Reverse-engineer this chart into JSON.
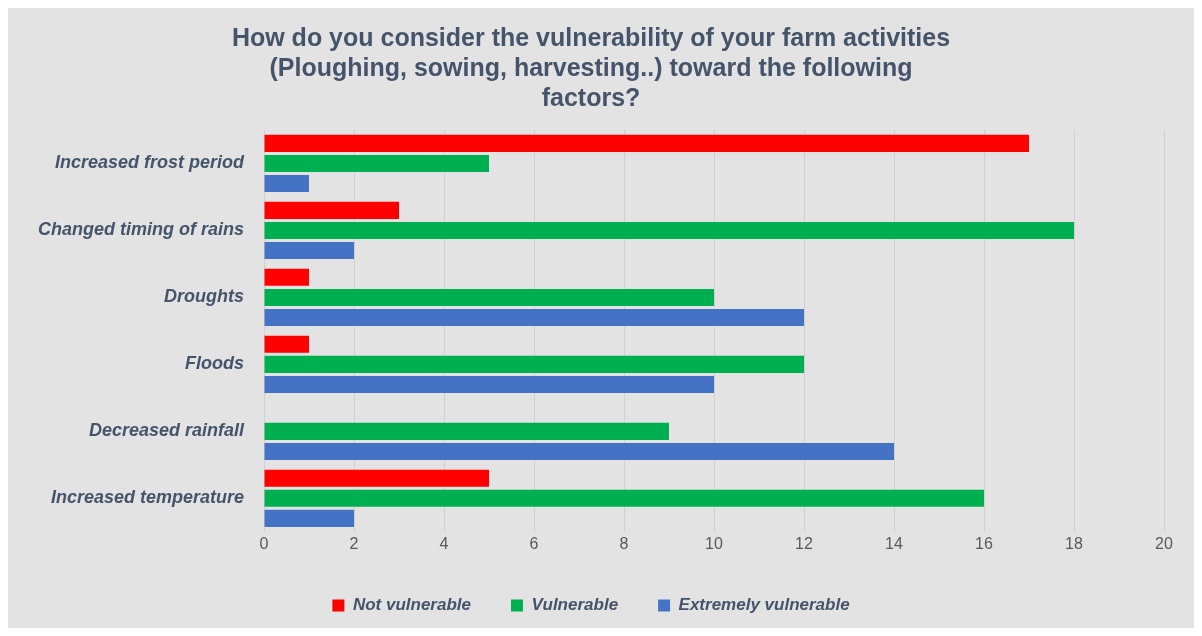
{
  "chart_data": {
    "type": "bar",
    "orientation": "horizontal",
    "title": "How do you consider the vulnerability of your farm activities (Ploughing, sowing, harvesting..) toward the following factors?",
    "categories": [
      "Increased frost period",
      "Changed timing of rains",
      "Droughts",
      "Floods",
      "Decreased rainfall",
      "Increased temperature"
    ],
    "series": [
      {
        "name": "Not vulnerable",
        "color": "#ff0000",
        "values": [
          17,
          3,
          1,
          1,
          0,
          5
        ]
      },
      {
        "name": "Vulnerable",
        "color": "#00b050",
        "values": [
          5,
          18,
          10,
          12,
          9,
          16
        ]
      },
      {
        "name": "Extremely vulnerable",
        "color": "#4472c4",
        "values": [
          1,
          2,
          12,
          10,
          14,
          2
        ]
      }
    ],
    "xlim": [
      0,
      20
    ],
    "xticks": [
      0,
      2,
      4,
      6,
      8,
      10,
      12,
      14,
      16,
      18,
      20
    ],
    "grid": "x",
    "legend": "bottom"
  }
}
